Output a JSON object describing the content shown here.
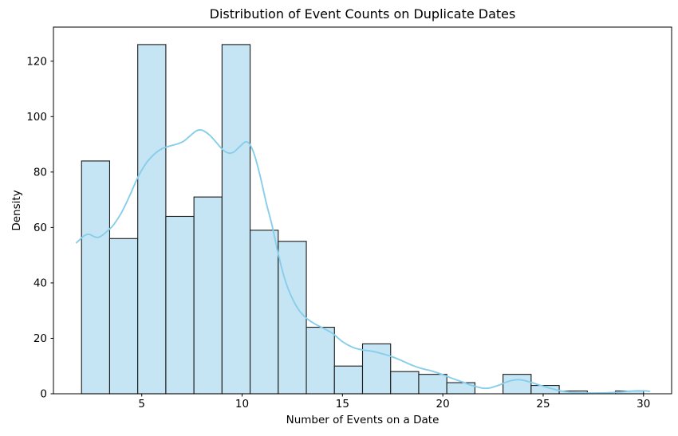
{
  "figure": {
    "title": "Distribution of Event Counts on Duplicate Dates",
    "xlabel": "Number of Events on a Date",
    "ylabel": "Density"
  },
  "chart_data": {
    "type": "bar",
    "subtype": "histogram_with_kde",
    "title": "Distribution of Event Counts on Duplicate Dates",
    "xlabel": "Number of Events on a Date",
    "ylabel": "Density",
    "bin_edges": [
      2.0,
      3.4,
      4.8,
      6.2,
      7.6,
      9.0,
      10.4,
      11.8,
      13.2,
      14.6,
      16.0,
      17.4,
      18.8,
      20.2,
      21.6,
      23.0,
      24.4,
      25.8,
      27.2,
      28.6,
      30.0
    ],
    "counts": [
      84,
      56,
      126,
      64,
      71,
      126,
      59,
      55,
      24,
      10,
      18,
      8,
      7,
      4,
      0,
      7,
      3,
      1,
      0,
      1
    ],
    "kde_series": {
      "name": "kde",
      "points": [
        [
          1.75,
          54.5
        ],
        [
          2.0,
          56.2
        ],
        [
          2.2,
          57.3
        ],
        [
          2.4,
          57.5
        ],
        [
          2.6,
          56.8
        ],
        [
          2.8,
          56.4
        ],
        [
          3.0,
          57.0
        ],
        [
          3.3,
          58.8
        ],
        [
          3.6,
          61.0
        ],
        [
          4.0,
          65.5
        ],
        [
          4.4,
          71.5
        ],
        [
          4.8,
          78.0
        ],
        [
          5.2,
          83.0
        ],
        [
          5.6,
          86.3
        ],
        [
          6.0,
          88.4
        ],
        [
          6.4,
          89.4
        ],
        [
          6.8,
          90.2
        ],
        [
          7.1,
          91.2
        ],
        [
          7.4,
          93.0
        ],
        [
          7.7,
          94.8
        ],
        [
          7.9,
          95.2
        ],
        [
          8.1,
          94.8
        ],
        [
          8.4,
          93.2
        ],
        [
          8.7,
          90.8
        ],
        [
          9.0,
          88.3
        ],
        [
          9.2,
          87.2
        ],
        [
          9.4,
          86.8
        ],
        [
          9.6,
          87.3
        ],
        [
          9.9,
          89.3
        ],
        [
          10.15,
          90.8
        ],
        [
          10.35,
          90.3
        ],
        [
          10.6,
          86.5
        ],
        [
          10.9,
          78.5
        ],
        [
          11.2,
          69.0
        ],
        [
          11.5,
          60.5
        ],
        [
          11.8,
          50.5
        ],
        [
          12.1,
          42.0
        ],
        [
          12.4,
          36.0
        ],
        [
          12.8,
          30.5
        ],
        [
          13.2,
          27.3
        ],
        [
          13.6,
          25.3
        ],
        [
          14.0,
          23.8
        ],
        [
          14.5,
          21.8
        ],
        [
          15.0,
          18.8
        ],
        [
          15.5,
          16.8
        ],
        [
          16.0,
          15.8
        ],
        [
          16.5,
          15.3
        ],
        [
          17.0,
          14.4
        ],
        [
          17.5,
          13.3
        ],
        [
          18.0,
          11.8
        ],
        [
          18.5,
          10.2
        ],
        [
          19.0,
          9.0
        ],
        [
          19.4,
          8.3
        ],
        [
          19.8,
          7.4
        ],
        [
          20.2,
          6.3
        ],
        [
          20.6,
          5.2
        ],
        [
          21.0,
          4.2
        ],
        [
          21.4,
          3.1
        ],
        [
          21.8,
          2.3
        ],
        [
          22.1,
          1.95
        ],
        [
          22.4,
          2.2
        ],
        [
          22.8,
          3.1
        ],
        [
          23.2,
          4.3
        ],
        [
          23.6,
          5.0
        ],
        [
          23.9,
          5.0
        ],
        [
          24.3,
          4.3
        ],
        [
          24.7,
          3.4
        ],
        [
          25.1,
          2.5
        ],
        [
          25.5,
          1.7
        ],
        [
          25.9,
          1.0
        ],
        [
          26.3,
          0.6
        ],
        [
          26.8,
          0.35
        ],
        [
          27.3,
          0.25
        ],
        [
          27.8,
          0.28
        ],
        [
          28.3,
          0.4
        ],
        [
          28.8,
          0.6
        ],
        [
          29.2,
          0.85
        ],
        [
          29.6,
          1.05
        ],
        [
          30.0,
          1.05
        ],
        [
          30.3,
          0.9
        ]
      ]
    },
    "xticks": [
      5,
      10,
      15,
      20,
      25,
      30
    ],
    "yticks": [
      0,
      20,
      40,
      60,
      80,
      100,
      120
    ],
    "xlim": [
      0.6,
      31.4
    ],
    "ylim": [
      0,
      132.3
    ],
    "grid": false,
    "legend": "none",
    "colors": {
      "bar_fill": "#c5e4f4",
      "bar_edge": "#1a1a1a",
      "kde_line": "#87ceeb",
      "axis": "#000000",
      "background": "#ffffff",
      "text": "#000000"
    }
  }
}
